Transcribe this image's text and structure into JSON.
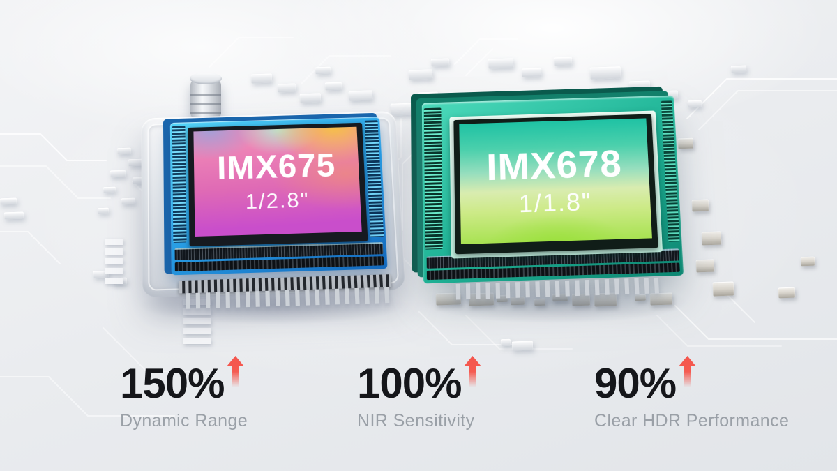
{
  "chips": [
    {
      "model": "IMX675",
      "size": "1/2.8\""
    },
    {
      "model": "IMX678",
      "size": "1/1.8\""
    }
  ],
  "stats": [
    {
      "value": "150%",
      "label": "Dynamic Range",
      "trend_icon": "arrow-up-icon"
    },
    {
      "value": "100%",
      "label": "NIR Sensitivity",
      "trend_icon": "arrow-up-icon"
    },
    {
      "value": "90%",
      "label": "Clear HDR Performance",
      "trend_icon": "arrow-up-icon"
    }
  ],
  "colors": {
    "arrow_red": "#f4564e",
    "stat_value": "#15161a",
    "stat_label": "#9aa0a7",
    "left_chip_blue": "#2aa3e8",
    "left_screen_magenta": "#c94ecb",
    "right_chip_teal": "#21b598",
    "right_screen_green": "#a8e252",
    "background": "#edeff2"
  }
}
